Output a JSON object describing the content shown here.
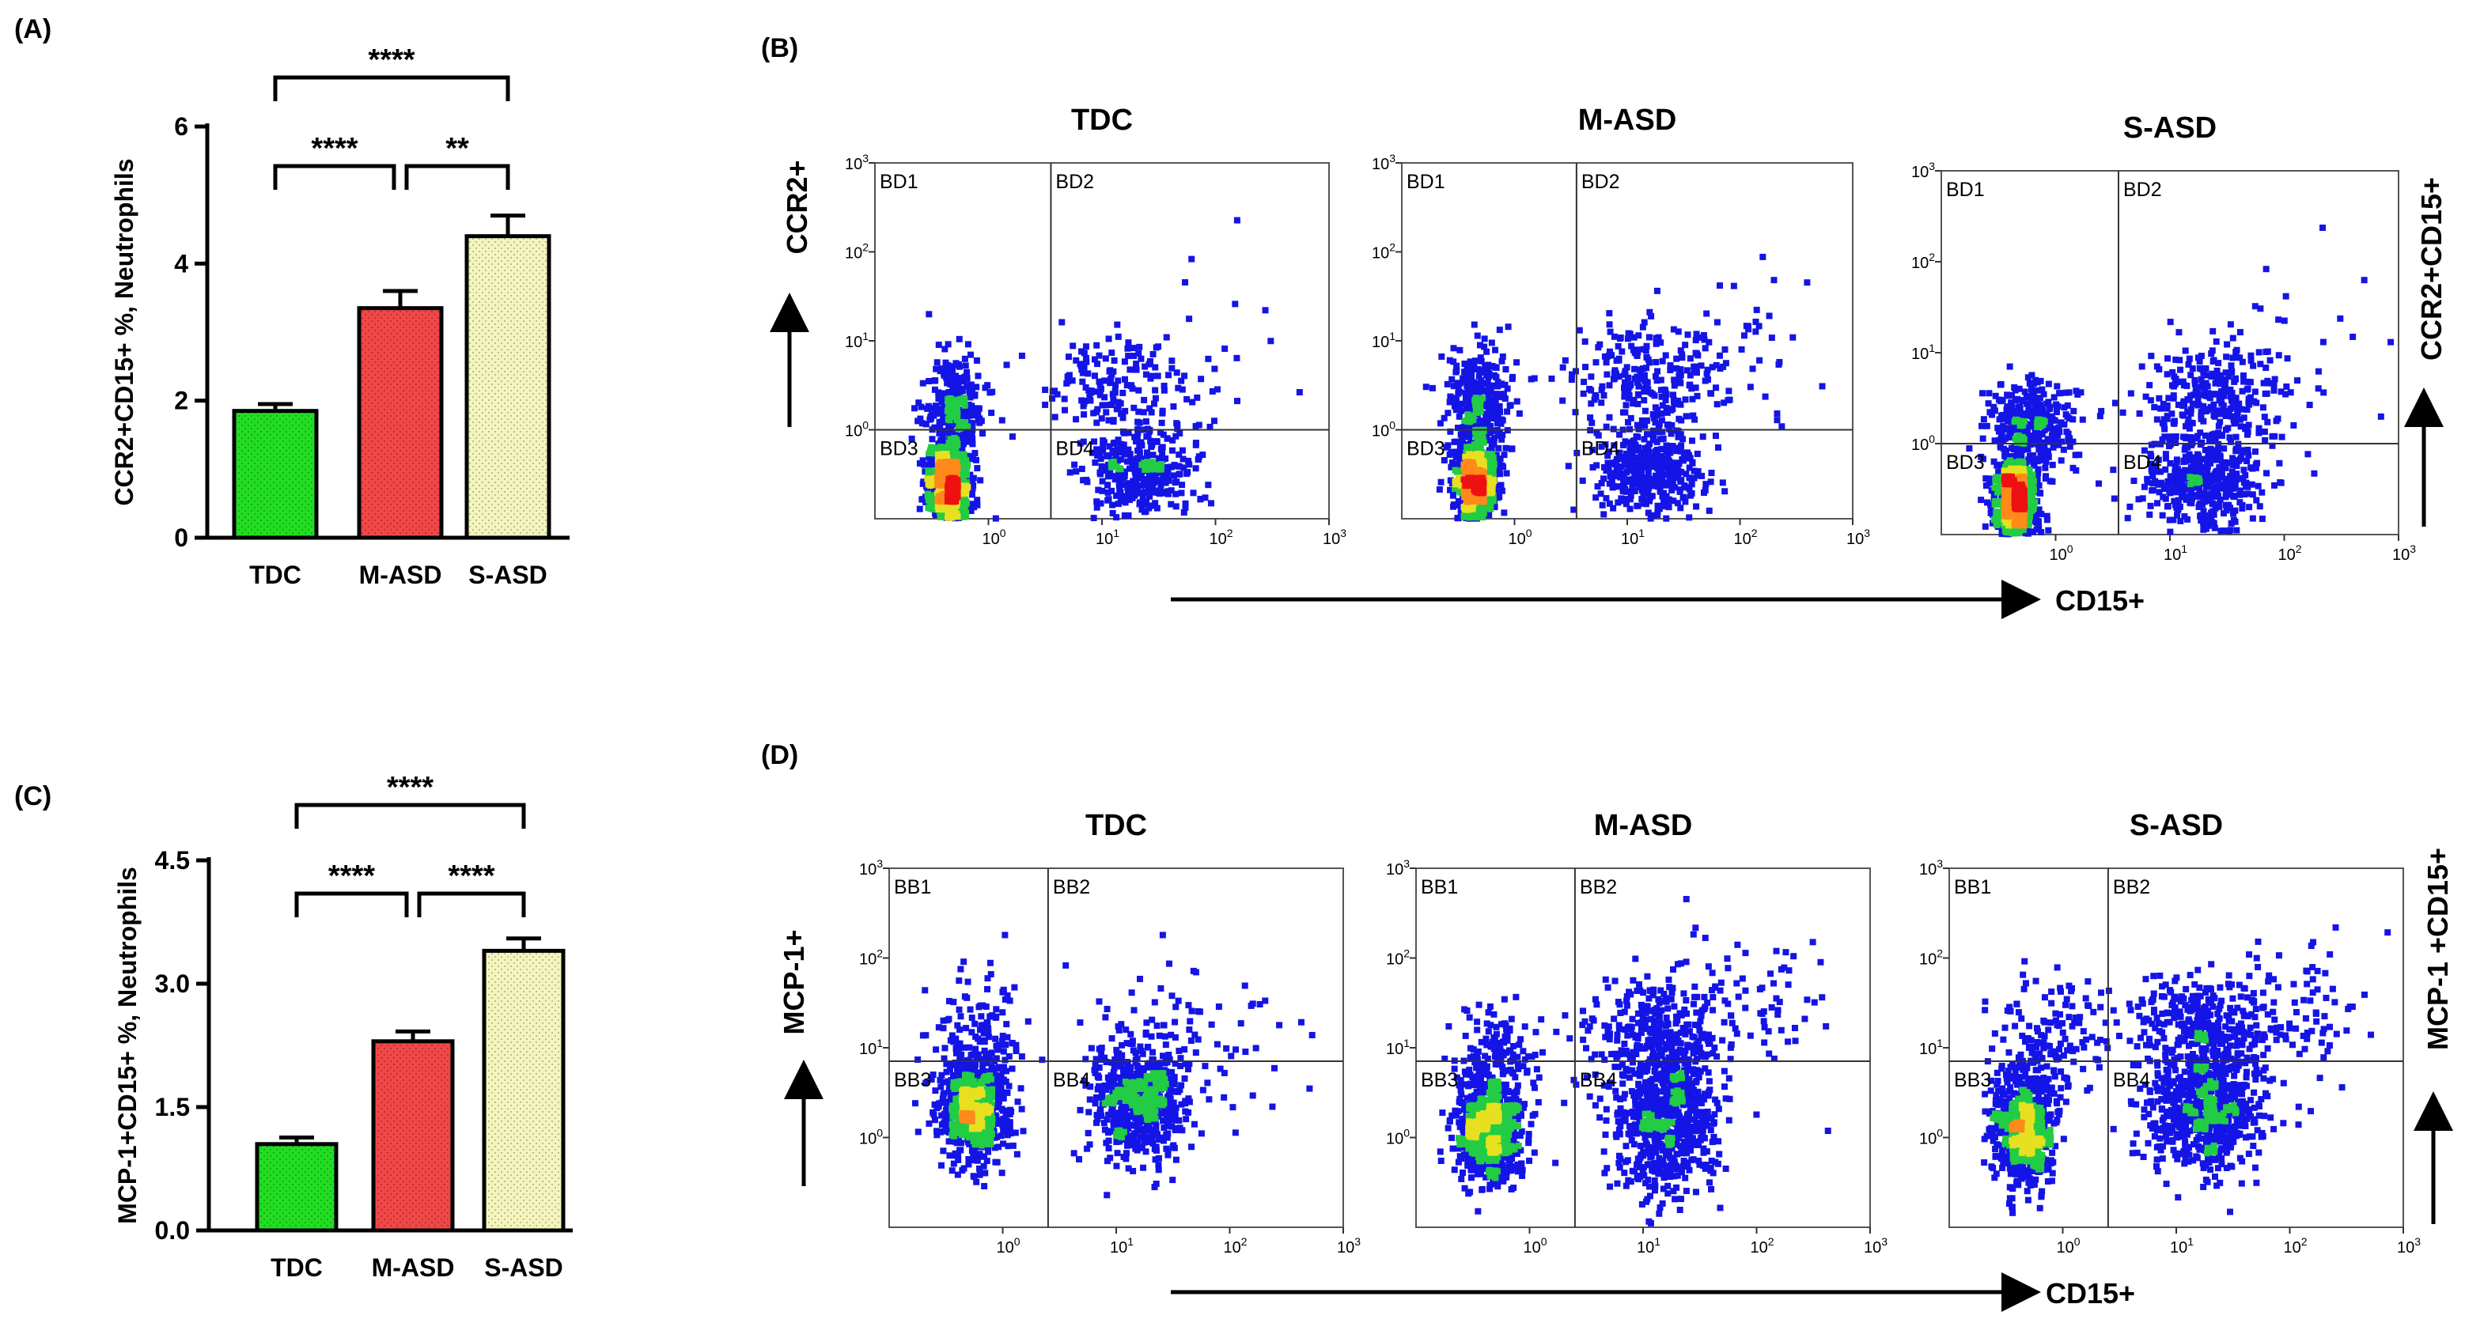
{
  "figure": {
    "panel_labels": {
      "A": "(A)",
      "B": "(B)",
      "C": "(C)",
      "D": "(D)"
    },
    "colors": {
      "TDC": "#22dd22",
      "M-ASD": "#f04848",
      "S-ASD": "#f4f4c0",
      "axis": "#000000",
      "dot_low": "#1414e6",
      "dot_mid": "#22cc44",
      "dot_high": "#ee1111"
    }
  },
  "chart_data": [
    {
      "id": "A",
      "type": "bar",
      "panel_label": "(A)",
      "categories": [
        "TDC",
        "M-ASD",
        "S-ASD"
      ],
      "values": [
        1.85,
        3.35,
        4.4
      ],
      "errors": [
        0.1,
        0.25,
        0.3
      ],
      "ylabel": "CCR2+CD15+ %, Neutrophils",
      "ylim": [
        0,
        6
      ],
      "yticks": [
        0,
        2,
        4,
        6
      ],
      "ytick_labels": [
        "0",
        "2",
        "4",
        "6"
      ],
      "significance": [
        {
          "from": 0,
          "to": 2,
          "label": "****",
          "level": 2
        },
        {
          "from": 0,
          "to": 1,
          "label": "****",
          "level": 1
        },
        {
          "from": 1,
          "to": 2,
          "label": "**",
          "level": 1
        }
      ]
    },
    {
      "id": "C",
      "type": "bar",
      "panel_label": "(C)",
      "categories": [
        "TDC",
        "M-ASD",
        "S-ASD"
      ],
      "values": [
        1.05,
        2.3,
        3.4
      ],
      "errors": [
        0.08,
        0.12,
        0.15
      ],
      "ylabel": "MCP-1+CD15+ %, Neutrophils",
      "ylim": [
        0,
        4.5
      ],
      "yticks": [
        0,
        1.5,
        3.0,
        4.5
      ],
      "ytick_labels": [
        "0.0",
        "1.5",
        "3.0",
        "4.5"
      ],
      "significance": [
        {
          "from": 0,
          "to": 2,
          "label": "****",
          "level": 2
        },
        {
          "from": 0,
          "to": 1,
          "label": "****",
          "level": 1
        },
        {
          "from": 1,
          "to": 2,
          "label": "****",
          "level": 1
        }
      ]
    },
    {
      "id": "B",
      "type": "scatter",
      "subtype": "flow-cytometry-density",
      "panel_label": "(B)",
      "titles": [
        "TDC",
        "M-ASD",
        "S-ASD"
      ],
      "ylabel": "CCR2+",
      "xlabel": "CD15+",
      "right_label": "CCR2+CD15+",
      "quadrants": [
        "BD1",
        "BD2",
        "BD3",
        "BD4"
      ],
      "xlim_log": [
        -1,
        3
      ],
      "ylim_log": [
        -1,
        3
      ],
      "x_gate_log": 0.55,
      "y_gate_log": 0,
      "tick_exponents": [
        0,
        1,
        2,
        3
      ],
      "clusters": [
        [
          {
            "x": -0.35,
            "y": -0.6,
            "sx": 0.09,
            "sy": 0.25,
            "n": 900
          },
          {
            "x": -0.3,
            "y": 0.25,
            "sx": 0.14,
            "sy": 0.28,
            "n": 260
          },
          {
            "x": 1.35,
            "y": -0.5,
            "sx": 0.22,
            "sy": 0.25,
            "n": 330
          },
          {
            "x": 1.15,
            "y": 0.45,
            "sx": 0.35,
            "sy": 0.3,
            "n": 170
          },
          {
            "x": 1.8,
            "y": 0.7,
            "sx": 0.55,
            "sy": 0.6,
            "n": 25
          }
        ],
        [
          {
            "x": -0.35,
            "y": -0.6,
            "sx": 0.09,
            "sy": 0.25,
            "n": 900
          },
          {
            "x": -0.3,
            "y": 0.3,
            "sx": 0.15,
            "sy": 0.3,
            "n": 300
          },
          {
            "x": 1.2,
            "y": -0.45,
            "sx": 0.24,
            "sy": 0.25,
            "n": 380
          },
          {
            "x": 1.2,
            "y": 0.55,
            "sx": 0.35,
            "sy": 0.35,
            "n": 260
          },
          {
            "x": 2.0,
            "y": 0.9,
            "sx": 0.5,
            "sy": 0.6,
            "n": 40
          }
        ],
        [
          {
            "x": -0.35,
            "y": -0.6,
            "sx": 0.09,
            "sy": 0.22,
            "n": 900
          },
          {
            "x": -0.2,
            "y": 0.2,
            "sx": 0.2,
            "sy": 0.25,
            "n": 320
          },
          {
            "x": 1.3,
            "y": -0.45,
            "sx": 0.25,
            "sy": 0.25,
            "n": 380
          },
          {
            "x": 1.35,
            "y": 0.5,
            "sx": 0.3,
            "sy": 0.35,
            "n": 300
          },
          {
            "x": 2.1,
            "y": 0.9,
            "sx": 0.5,
            "sy": 0.6,
            "n": 40
          }
        ]
      ]
    },
    {
      "id": "D",
      "type": "scatter",
      "subtype": "flow-cytometry-density",
      "panel_label": "(D)",
      "titles": [
        "TDC",
        "M-ASD",
        "S-ASD"
      ],
      "ylabel": "MCP-1+",
      "xlabel": "CD15+",
      "right_label": "MCP-1 +CD15+",
      "quadrants": [
        "BB1",
        "BB2",
        "BB3",
        "BB4"
      ],
      "xlim_log": [
        -1,
        3
      ],
      "ylim_log": [
        -1,
        3
      ],
      "x_gate_log": 0.4,
      "y_gate_log": 0.85,
      "tick_exponents": [
        0,
        1,
        2,
        3
      ],
      "clusters": [
        [
          {
            "x": -0.25,
            "y": 0.3,
            "sx": 0.15,
            "sy": 0.28,
            "n": 800
          },
          {
            "x": 1.2,
            "y": 0.4,
            "sx": 0.2,
            "sy": 0.3,
            "n": 650
          },
          {
            "x": -0.2,
            "y": 1.1,
            "sx": 0.2,
            "sy": 0.35,
            "n": 140
          },
          {
            "x": 1.6,
            "y": 1.1,
            "sx": 0.45,
            "sy": 0.45,
            "n": 90
          }
        ],
        [
          {
            "x": -0.35,
            "y": 0.1,
            "sx": 0.13,
            "sy": 0.3,
            "n": 800
          },
          {
            "x": 1.2,
            "y": 0.2,
            "sx": 0.22,
            "sy": 0.4,
            "n": 650
          },
          {
            "x": 1.1,
            "y": 1.1,
            "sx": 0.3,
            "sy": 0.35,
            "n": 300
          },
          {
            "x": -0.3,
            "y": 0.9,
            "sx": 0.2,
            "sy": 0.35,
            "n": 150
          },
          {
            "x": 1.8,
            "y": 1.5,
            "sx": 0.45,
            "sy": 0.4,
            "n": 90
          }
        ],
        [
          {
            "x": -0.35,
            "y": 0.1,
            "sx": 0.13,
            "sy": 0.3,
            "n": 800
          },
          {
            "x": 1.25,
            "y": 0.3,
            "sx": 0.25,
            "sy": 0.35,
            "n": 650
          },
          {
            "x": 1.2,
            "y": 1.2,
            "sx": 0.3,
            "sy": 0.3,
            "n": 320
          },
          {
            "x": -0.1,
            "y": 1.0,
            "sx": 0.25,
            "sy": 0.4,
            "n": 160
          },
          {
            "x": 2.0,
            "y": 1.4,
            "sx": 0.45,
            "sy": 0.4,
            "n": 90
          }
        ]
      ]
    }
  ]
}
